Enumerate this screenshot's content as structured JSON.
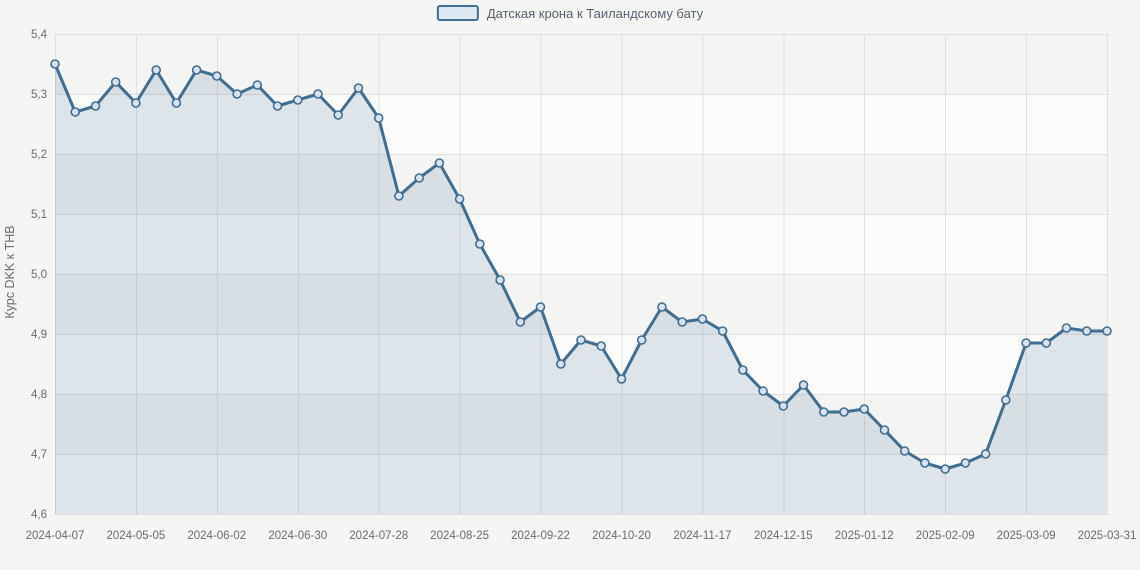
{
  "chart_data": {
    "type": "area",
    "title": "",
    "legend": "Датская крона к Таиландскому бату",
    "ylabel": "Курс DKK к THB",
    "xlabel": "",
    "ylim": [
      4.6,
      5.4
    ],
    "grid": true,
    "legend_position": "top-center",
    "x": [
      "2024-04-07",
      "2024-04-14",
      "2024-04-21",
      "2024-04-28",
      "2024-05-05",
      "2024-05-12",
      "2024-05-19",
      "2024-05-26",
      "2024-06-02",
      "2024-06-09",
      "2024-06-16",
      "2024-06-23",
      "2024-06-30",
      "2024-07-07",
      "2024-07-14",
      "2024-07-21",
      "2024-07-28",
      "2024-08-04",
      "2024-08-11",
      "2024-08-18",
      "2024-08-25",
      "2024-09-01",
      "2024-09-08",
      "2024-09-15",
      "2024-09-22",
      "2024-09-29",
      "2024-10-06",
      "2024-10-13",
      "2024-10-20",
      "2024-10-27",
      "2024-11-03",
      "2024-11-10",
      "2024-11-17",
      "2024-11-24",
      "2024-12-01",
      "2024-12-08",
      "2024-12-15",
      "2024-12-22",
      "2024-12-29",
      "2025-01-05",
      "2025-01-12",
      "2025-01-19",
      "2025-01-26",
      "2025-02-02",
      "2025-02-09",
      "2025-02-16",
      "2025-02-23",
      "2025-03-02",
      "2025-03-09",
      "2025-03-16",
      "2025-03-23",
      "2025-03-30",
      "2025-03-31"
    ],
    "values": [
      5.35,
      5.27,
      5.28,
      5.32,
      5.285,
      5.34,
      5.285,
      5.34,
      5.33,
      5.3,
      5.315,
      5.28,
      5.29,
      5.3,
      5.265,
      5.31,
      5.26,
      5.13,
      5.16,
      5.185,
      5.125,
      5.05,
      4.99,
      4.92,
      4.945,
      4.85,
      4.89,
      4.88,
      4.825,
      4.89,
      4.945,
      4.92,
      4.925,
      4.905,
      4.84,
      4.805,
      4.78,
      4.815,
      4.77,
      4.77,
      4.775,
      4.74,
      4.705,
      4.685,
      4.675,
      4.685,
      4.7,
      4.79,
      4.885,
      4.885,
      4.91,
      4.905,
      4.905
    ],
    "x_tick_indices": [
      0,
      4,
      8,
      12,
      16,
      20,
      24,
      28,
      32,
      36,
      40,
      44,
      48,
      52
    ],
    "x_tick_labels": [
      "2024-04-07",
      "2024-05-05",
      "2024-06-02",
      "2024-06-30",
      "2024-07-28",
      "2024-08-25",
      "2024-09-22",
      "2024-10-20",
      "2024-11-17",
      "2024-12-15",
      "2025-01-12",
      "2025-02-09",
      "2025-03-09",
      "2025-03-31"
    ],
    "y_ticks": [
      4.6,
      4.7,
      4.8,
      4.9,
      5.0,
      5.1,
      5.2,
      5.3,
      5.4
    ],
    "y_tick_labels": [
      "4,6",
      "4,7",
      "4,8",
      "4,9",
      "5,0",
      "5,1",
      "5,2",
      "5,3",
      "5,4"
    ],
    "colors": {
      "line": "#3d6e94",
      "area": "rgba(61,110,148,0.15)",
      "marker_fill": "#d7e2ee",
      "grid": "#e0e0de",
      "band_dark": "#f4f4f2",
      "band_light": "#fbfbfa",
      "page_bg": "#f5f5f4",
      "tick_text": "#6a6a6a",
      "legend_text": "#566270"
    }
  }
}
